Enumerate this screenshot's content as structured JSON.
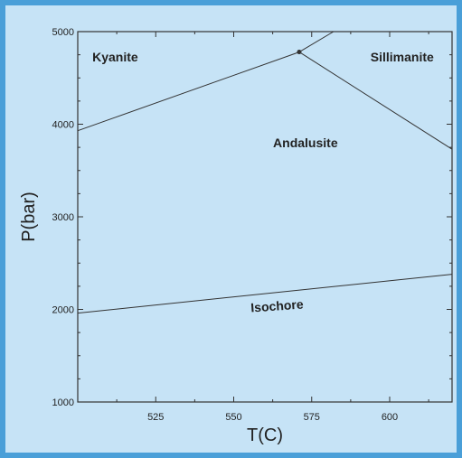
{
  "chart_data": {
    "type": "line",
    "title": "",
    "xlabel": "T(C)",
    "ylabel": "P(bar)",
    "xlim": [
      500,
      620
    ],
    "ylim": [
      1000,
      5000
    ],
    "x_ticks": [
      525,
      550,
      575,
      600
    ],
    "y_ticks": [
      1000,
      2000,
      3000,
      4000,
      5000
    ],
    "grid": false,
    "series": [
      {
        "values": [
          {
            "x": 500,
            "y": 3930
          },
          {
            "x": 571,
            "y": 4780
          }
        ]
      },
      {
        "values": [
          {
            "x": 571,
            "y": 4780
          },
          {
            "x": 582,
            "y": 5000
          }
        ]
      },
      {
        "values": [
          {
            "x": 571,
            "y": 4780
          },
          {
            "x": 620,
            "y": 3730
          }
        ]
      },
      {
        "values": [
          {
            "x": 500,
            "y": 1960
          },
          {
            "x": 620,
            "y": 2380
          }
        ]
      }
    ],
    "triple_point": {
      "x": 571,
      "y": 4780
    },
    "annotations": [
      {
        "text": "Kyanite",
        "x": 512,
        "y": 4680
      },
      {
        "text": "Sillimanite",
        "x": 604,
        "y": 4680
      },
      {
        "text": "Andalusite",
        "x": 573,
        "y": 3750
      },
      {
        "text": "Isochore",
        "x": 564,
        "y": 1990
      }
    ]
  }
}
